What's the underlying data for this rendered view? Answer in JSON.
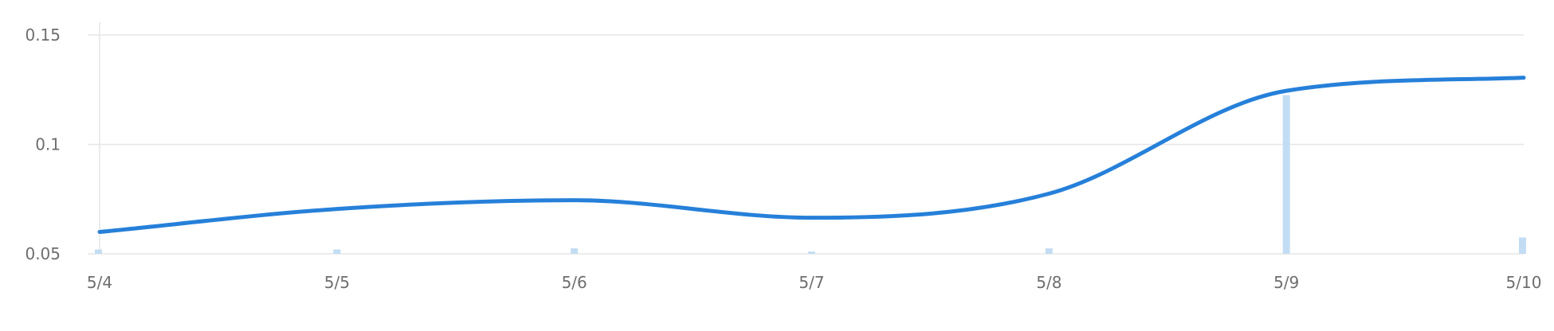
{
  "chart_data": {
    "type": "line",
    "categories": [
      "5/4",
      "5/5",
      "5/6",
      "5/7",
      "5/8",
      "5/9",
      "5/10"
    ],
    "y_ticks": [
      "0.05",
      "0.1",
      "0.15"
    ],
    "ylim": [
      0.05,
      0.15
    ],
    "grid": true,
    "series": [
      {
        "type": "line",
        "color": "#2680d9",
        "values": [
          0.06,
          0.0705,
          0.0745,
          0.0665,
          0.0775,
          0.1245,
          0.1305
        ]
      },
      {
        "type": "bar",
        "color": "#c2ddf3",
        "values": [
          0.052,
          0.052,
          0.0525,
          0.051,
          0.0525,
          0.1225,
          0.0575
        ]
      }
    ]
  }
}
